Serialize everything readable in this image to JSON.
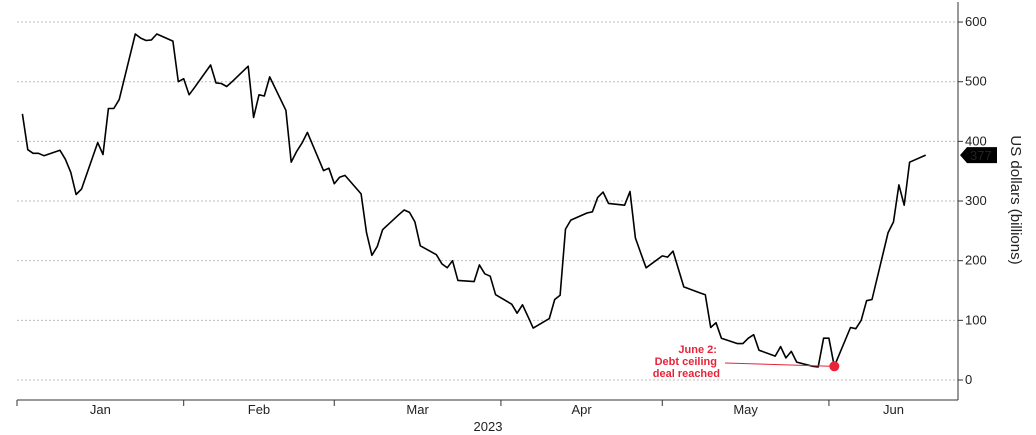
{
  "chart_data": {
    "type": "line",
    "title": "",
    "xlabel": "2023",
    "ylabel": "US dollars (billions)",
    "ylim": [
      0,
      600
    ],
    "y_ticks": [
      0,
      100,
      200,
      300,
      400,
      500,
      600
    ],
    "x_month_labels": [
      "Jan",
      "Feb",
      "Mar",
      "Apr",
      "May",
      "Jun"
    ],
    "grid": "horizontal dotted",
    "y_axis_position": "right",
    "last_value_label": "377",
    "colors": {
      "line": "#000000",
      "annotation": "#e8233a",
      "badge_bg": "#000000",
      "badge_text": "#ffffff"
    },
    "series": [
      {
        "values": [
          {
            "x": "2023-01-02",
            "y": 446
          },
          {
            "x": "2023-01-03",
            "y": 386
          },
          {
            "x": "2023-01-04",
            "y": 380
          },
          {
            "x": "2023-01-05",
            "y": 380
          },
          {
            "x": "2023-01-06",
            "y": 376
          },
          {
            "x": "2023-01-09",
            "y": 385
          },
          {
            "x": "2023-01-10",
            "y": 370
          },
          {
            "x": "2023-01-11",
            "y": 348
          },
          {
            "x": "2023-01-12",
            "y": 311
          },
          {
            "x": "2023-01-13",
            "y": 320
          },
          {
            "x": "2023-01-16",
            "y": 398
          },
          {
            "x": "2023-01-17",
            "y": 378
          },
          {
            "x": "2023-01-18",
            "y": 455
          },
          {
            "x": "2023-01-19",
            "y": 455
          },
          {
            "x": "2023-01-20",
            "y": 470
          },
          {
            "x": "2023-01-23",
            "y": 580
          },
          {
            "x": "2023-01-24",
            "y": 573
          },
          {
            "x": "2023-01-25",
            "y": 569
          },
          {
            "x": "2023-01-26",
            "y": 570
          },
          {
            "x": "2023-01-27",
            "y": 580
          },
          {
            "x": "2023-01-30",
            "y": 568
          },
          {
            "x": "2023-01-31",
            "y": 500
          },
          {
            "x": "2023-02-01",
            "y": 505
          },
          {
            "x": "2023-02-02",
            "y": 478
          },
          {
            "x": "2023-02-03",
            "y": 490
          },
          {
            "x": "2023-02-06",
            "y": 528
          },
          {
            "x": "2023-02-07",
            "y": 498
          },
          {
            "x": "2023-02-08",
            "y": 497
          },
          {
            "x": "2023-02-09",
            "y": 492
          },
          {
            "x": "2023-02-10",
            "y": 500
          },
          {
            "x": "2023-02-13",
            "y": 526
          },
          {
            "x": "2023-02-14",
            "y": 440
          },
          {
            "x": "2023-02-15",
            "y": 478
          },
          {
            "x": "2023-02-16",
            "y": 476
          },
          {
            "x": "2023-02-17",
            "y": 508
          },
          {
            "x": "2023-02-20",
            "y": 452
          },
          {
            "x": "2023-02-21",
            "y": 365
          },
          {
            "x": "2023-02-22",
            "y": 383
          },
          {
            "x": "2023-02-23",
            "y": 397
          },
          {
            "x": "2023-02-24",
            "y": 415
          },
          {
            "x": "2023-02-27",
            "y": 351
          },
          {
            "x": "2023-02-28",
            "y": 355
          },
          {
            "x": "2023-03-01",
            "y": 329
          },
          {
            "x": "2023-03-02",
            "y": 340
          },
          {
            "x": "2023-03-03",
            "y": 343
          },
          {
            "x": "2023-03-06",
            "y": 312
          },
          {
            "x": "2023-03-07",
            "y": 247
          },
          {
            "x": "2023-03-08",
            "y": 209
          },
          {
            "x": "2023-03-09",
            "y": 224
          },
          {
            "x": "2023-03-10",
            "y": 252
          },
          {
            "x": "2023-03-13",
            "y": 277
          },
          {
            "x": "2023-03-14",
            "y": 285
          },
          {
            "x": "2023-03-15",
            "y": 281
          },
          {
            "x": "2023-03-16",
            "y": 265
          },
          {
            "x": "2023-03-17",
            "y": 225
          },
          {
            "x": "2023-03-20",
            "y": 210
          },
          {
            "x": "2023-03-21",
            "y": 195
          },
          {
            "x": "2023-03-22",
            "y": 188
          },
          {
            "x": "2023-03-23",
            "y": 200
          },
          {
            "x": "2023-03-24",
            "y": 167
          },
          {
            "x": "2023-03-27",
            "y": 165
          },
          {
            "x": "2023-03-28",
            "y": 193
          },
          {
            "x": "2023-03-29",
            "y": 178
          },
          {
            "x": "2023-03-30",
            "y": 174
          },
          {
            "x": "2023-03-31",
            "y": 143
          },
          {
            "x": "2023-04-03",
            "y": 127
          },
          {
            "x": "2023-04-04",
            "y": 112
          },
          {
            "x": "2023-04-05",
            "y": 126
          },
          {
            "x": "2023-04-06",
            "y": 107
          },
          {
            "x": "2023-04-07",
            "y": 87
          },
          {
            "x": "2023-04-10",
            "y": 103
          },
          {
            "x": "2023-04-11",
            "y": 135
          },
          {
            "x": "2023-04-12",
            "y": 142
          },
          {
            "x": "2023-04-13",
            "y": 253
          },
          {
            "x": "2023-04-14",
            "y": 268
          },
          {
            "x": "2023-04-17",
            "y": 280
          },
          {
            "x": "2023-04-18",
            "y": 282
          },
          {
            "x": "2023-04-19",
            "y": 306
          },
          {
            "x": "2023-04-20",
            "y": 315
          },
          {
            "x": "2023-04-21",
            "y": 296
          },
          {
            "x": "2023-04-24",
            "y": 293
          },
          {
            "x": "2023-04-25",
            "y": 316
          },
          {
            "x": "2023-04-26",
            "y": 238
          },
          {
            "x": "2023-04-27",
            "y": 213
          },
          {
            "x": "2023-04-28",
            "y": 188
          },
          {
            "x": "2023-05-01",
            "y": 208
          },
          {
            "x": "2023-05-02",
            "y": 206
          },
          {
            "x": "2023-05-03",
            "y": 216
          },
          {
            "x": "2023-05-04",
            "y": 186
          },
          {
            "x": "2023-05-05",
            "y": 156
          },
          {
            "x": "2023-05-08",
            "y": 146
          },
          {
            "x": "2023-05-09",
            "y": 143
          },
          {
            "x": "2023-05-10",
            "y": 88
          },
          {
            "x": "2023-05-11",
            "y": 96
          },
          {
            "x": "2023-05-12",
            "y": 70
          },
          {
            "x": "2023-05-15",
            "y": 61
          },
          {
            "x": "2023-05-16",
            "y": 61
          },
          {
            "x": "2023-05-17",
            "y": 70
          },
          {
            "x": "2023-05-18",
            "y": 76
          },
          {
            "x": "2023-05-19",
            "y": 50
          },
          {
            "x": "2023-05-22",
            "y": 40
          },
          {
            "x": "2023-05-23",
            "y": 56
          },
          {
            "x": "2023-05-24",
            "y": 37
          },
          {
            "x": "2023-05-25",
            "y": 48
          },
          {
            "x": "2023-05-26",
            "y": 30
          },
          {
            "x": "2023-05-29",
            "y": 23
          },
          {
            "x": "2023-05-30",
            "y": 22
          },
          {
            "x": "2023-05-31",
            "y": 70
          },
          {
            "x": "2023-06-01",
            "y": 70
          },
          {
            "x": "2023-06-02",
            "y": 23
          },
          {
            "x": "2023-06-05",
            "y": 88
          },
          {
            "x": "2023-06-06",
            "y": 86
          },
          {
            "x": "2023-06-07",
            "y": 100
          },
          {
            "x": "2023-06-08",
            "y": 133
          },
          {
            "x": "2023-06-09",
            "y": 135
          },
          {
            "x": "2023-06-12",
            "y": 247
          },
          {
            "x": "2023-06-13",
            "y": 265
          },
          {
            "x": "2023-06-14",
            "y": 327
          },
          {
            "x": "2023-06-15",
            "y": 293
          },
          {
            "x": "2023-06-16",
            "y": 365
          },
          {
            "x": "2023-06-19",
            "y": 377
          }
        ]
      }
    ],
    "annotations": [
      {
        "x": "2023-06-02",
        "y": 23,
        "text_lines": [
          "June 2:",
          "Debt ceiling",
          "deal reached"
        ]
      }
    ]
  }
}
